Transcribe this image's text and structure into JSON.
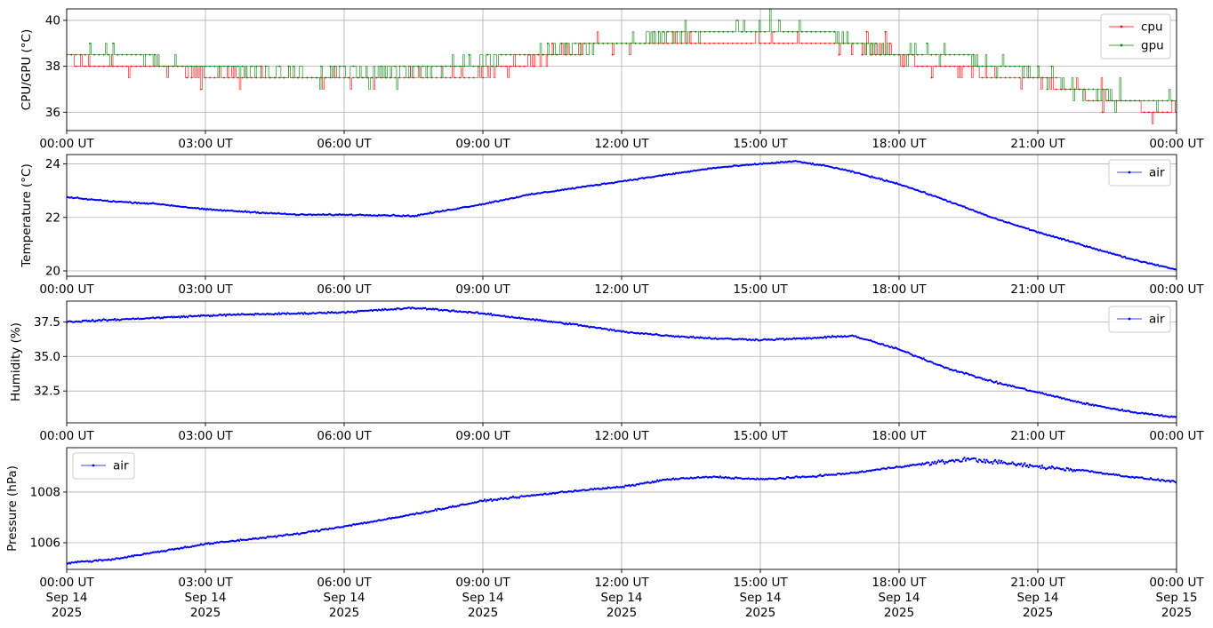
{
  "x_tick_labels": [
    "00:00 UT",
    "03:00 UT",
    "06:00 UT",
    "09:00 UT",
    "12:00 UT",
    "15:00 UT",
    "18:00 UT",
    "21:00 UT",
    "00:00 UT"
  ],
  "x_tick_dates": [
    [
      "Sep 14",
      "2025"
    ],
    [
      "Sep 14",
      "2025"
    ],
    [
      "Sep 14",
      "2025"
    ],
    [
      "Sep 14",
      "2025"
    ],
    [
      "Sep 14",
      "2025"
    ],
    [
      "Sep 14",
      "2025"
    ],
    [
      "Sep 14",
      "2025"
    ],
    [
      "Sep 14",
      "2025"
    ],
    [
      "Sep 15",
      "2025"
    ]
  ],
  "chart_data": [
    {
      "type": "line",
      "ylabel": "CPU/GPU (°C)",
      "x_range": [
        "2025-09-14 00:00",
        "2025-09-15 00:00"
      ],
      "x_ticks": [
        "00:00",
        "03:00",
        "06:00",
        "09:00",
        "12:00",
        "15:00",
        "18:00",
        "21:00",
        "24:00"
      ],
      "ylim": [
        35.2,
        40.5
      ],
      "yticks": [
        36,
        38,
        40
      ],
      "ytick_labels": [
        "36",
        "38",
        "40"
      ],
      "grid": true,
      "legend": "top-right",
      "quantization_step": 0.5,
      "series": [
        {
          "name": "cpu",
          "color": "#ff0000",
          "x": [
            "00:00",
            "00:30",
            "01:00",
            "01:30",
            "02:00",
            "02:30",
            "03:00",
            "03:30",
            "04:00",
            "04:30",
            "05:00",
            "05:30",
            "06:00",
            "06:30",
            "07:00",
            "07:30",
            "08:00",
            "08:30",
            "09:00",
            "09:30",
            "10:00",
            "10:30",
            "11:00",
            "11:30",
            "12:00",
            "12:30",
            "13:00",
            "13:30",
            "14:00",
            "14:30",
            "15:00",
            "15:30",
            "16:00",
            "16:30",
            "17:00",
            "17:30",
            "18:00",
            "18:30",
            "19:00",
            "19:30",
            "20:00",
            "20:30",
            "21:00",
            "21:30",
            "22:00",
            "22:30",
            "23:00",
            "23:30",
            "24:00"
          ],
          "y": [
            38.3,
            38.0,
            38.0,
            38.0,
            38.0,
            37.8,
            37.7,
            37.6,
            37.6,
            37.5,
            37.5,
            37.5,
            37.5,
            37.5,
            37.5,
            37.5,
            37.6,
            37.6,
            37.7,
            38.0,
            38.2,
            38.5,
            38.7,
            38.9,
            39.0,
            39.0,
            39.1,
            39.1,
            39.1,
            39.1,
            39.1,
            39.1,
            39.1,
            39.0,
            38.9,
            38.7,
            38.4,
            38.1,
            37.9,
            37.8,
            37.6,
            37.5,
            37.4,
            37.0,
            36.7,
            36.5,
            36.3,
            36.2,
            36.1
          ]
        },
        {
          "name": "gpu",
          "color": "#008000",
          "x": [
            "00:00",
            "00:30",
            "01:00",
            "01:30",
            "02:00",
            "02:30",
            "03:00",
            "03:30",
            "04:00",
            "04:30",
            "05:00",
            "05:30",
            "06:00",
            "06:30",
            "07:00",
            "07:30",
            "08:00",
            "08:30",
            "09:00",
            "09:30",
            "10:00",
            "10:30",
            "11:00",
            "11:30",
            "12:00",
            "12:30",
            "13:00",
            "13:30",
            "14:00",
            "14:30",
            "15:00",
            "15:30",
            "16:00",
            "16:30",
            "17:00",
            "17:30",
            "18:00",
            "18:30",
            "19:00",
            "19:30",
            "20:00",
            "20:30",
            "21:00",
            "21:30",
            "22:00",
            "22:30",
            "23:00",
            "23:30",
            "24:00"
          ],
          "y": [
            38.6,
            38.6,
            38.6,
            38.6,
            38.2,
            38.0,
            38.0,
            38.0,
            37.8,
            37.6,
            37.6,
            37.6,
            37.7,
            37.7,
            37.8,
            37.8,
            37.9,
            38.0,
            38.2,
            38.5,
            38.6,
            38.7,
            38.8,
            39.0,
            39.1,
            39.2,
            39.3,
            39.4,
            39.5,
            39.6,
            39.6,
            39.6,
            39.6,
            39.4,
            39.0,
            38.7,
            38.6,
            38.6,
            38.6,
            38.4,
            38.1,
            37.9,
            37.6,
            37.3,
            37.0,
            36.7,
            36.5,
            36.4,
            36.3
          ]
        }
      ]
    },
    {
      "type": "line",
      "ylabel": "Temperature (°C)",
      "x_range": [
        "2025-09-14 00:00",
        "2025-09-15 00:00"
      ],
      "ylim": [
        19.8,
        24.35
      ],
      "yticks": [
        20,
        22,
        24
      ],
      "ytick_labels": [
        "20",
        "22",
        "24"
      ],
      "grid": true,
      "legend": "top-right",
      "series": [
        {
          "name": "air",
          "color": "#0000ff",
          "x": [
            "00:00",
            "01:00",
            "02:00",
            "03:00",
            "04:00",
            "05:00",
            "06:00",
            "07:00",
            "07:30",
            "08:00",
            "09:00",
            "10:00",
            "11:00",
            "12:00",
            "13:00",
            "14:00",
            "15:00",
            "15:45",
            "16:30",
            "17:00",
            "18:00",
            "19:00",
            "20:00",
            "21:00",
            "22:00",
            "23:00",
            "24:00"
          ],
          "y": [
            22.75,
            22.6,
            22.5,
            22.3,
            22.2,
            22.1,
            22.1,
            22.08,
            22.05,
            22.2,
            22.5,
            22.85,
            23.1,
            23.35,
            23.6,
            23.85,
            24.0,
            24.1,
            23.9,
            23.7,
            23.25,
            22.65,
            22.0,
            21.45,
            20.95,
            20.45,
            20.05
          ]
        }
      ]
    },
    {
      "type": "line",
      "ylabel": "Humidity (%)",
      "x_range": [
        "2025-09-14 00:00",
        "2025-09-15 00:00"
      ],
      "ylim": [
        30.2,
        39.0
      ],
      "yticks": [
        32.5,
        35.0,
        37.5
      ],
      "ytick_labels": [
        "32.5",
        "35.0",
        "37.5"
      ],
      "grid": true,
      "legend": "top-right",
      "series": [
        {
          "name": "air",
          "color": "#0000ff",
          "x": [
            "00:00",
            "01:00",
            "02:00",
            "03:00",
            "04:00",
            "05:00",
            "06:00",
            "07:00",
            "07:30",
            "08:00",
            "09:00",
            "10:00",
            "11:00",
            "12:00",
            "13:00",
            "14:00",
            "15:00",
            "16:00",
            "17:00",
            "18:00",
            "19:00",
            "20:00",
            "21:00",
            "22:00",
            "23:00",
            "24:00"
          ],
          "y": [
            37.5,
            37.65,
            37.8,
            37.95,
            38.05,
            38.1,
            38.2,
            38.4,
            38.5,
            38.4,
            38.1,
            37.7,
            37.3,
            36.8,
            36.5,
            36.3,
            36.2,
            36.3,
            36.5,
            35.5,
            34.2,
            33.2,
            32.4,
            31.6,
            31.0,
            30.6
          ]
        }
      ]
    },
    {
      "type": "line",
      "ylabel": "Pressure (hPa)",
      "x_range": [
        "2025-09-14 00:00",
        "2025-09-15 00:00"
      ],
      "ylim": [
        1004.95,
        1009.75
      ],
      "yticks": [
        1006,
        1008
      ],
      "ytick_labels": [
        "1006",
        "1008"
      ],
      "grid": true,
      "legend": "top-left",
      "series": [
        {
          "name": "air",
          "color": "#0000ff",
          "x": [
            "00:00",
            "01:00",
            "02:00",
            "03:00",
            "04:00",
            "05:00",
            "06:00",
            "07:00",
            "08:00",
            "09:00",
            "10:00",
            "11:00",
            "12:00",
            "13:00",
            "14:00",
            "15:00",
            "16:00",
            "17:00",
            "18:00",
            "19:00",
            "19:30",
            "20:00",
            "21:00",
            "22:00",
            "23:00",
            "24:00"
          ],
          "y": [
            1005.2,
            1005.35,
            1005.65,
            1005.95,
            1006.15,
            1006.35,
            1006.65,
            1006.95,
            1007.3,
            1007.65,
            1007.85,
            1008.05,
            1008.2,
            1008.5,
            1008.6,
            1008.5,
            1008.6,
            1008.75,
            1009.0,
            1009.2,
            1009.3,
            1009.2,
            1009.0,
            1008.85,
            1008.6,
            1008.4
          ]
        }
      ]
    }
  ]
}
